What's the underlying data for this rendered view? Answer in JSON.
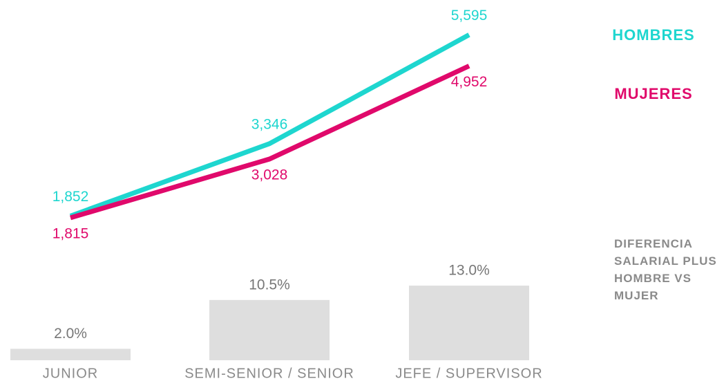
{
  "chart_data": [
    {
      "type": "line",
      "series": [
        {
          "name": "HOMBRES",
          "color": "#1ed6cf",
          "values": [
            1852,
            3346,
            5595
          ],
          "value_labels": [
            "1,852",
            "3,346",
            "5,595"
          ]
        },
        {
          "name": "MUJERES",
          "color": "#e0096b",
          "values": [
            1815,
            3028,
            4952
          ],
          "value_labels": [
            "1,815",
            "3,028",
            "4,952"
          ]
        }
      ]
    },
    {
      "type": "bar",
      "title": "DIFERENCIA SALARIAL PLUS HOMBRE VS MUJER",
      "categories": [
        "JUNIOR",
        "SEMI-SENIOR / SENIOR",
        "JEFE / SUPERVISOR"
      ],
      "values": [
        2.0,
        10.5,
        13.0
      ],
      "value_labels": [
        "2.0%",
        "10.5%",
        "13.0%"
      ],
      "color": "#dedede"
    }
  ]
}
